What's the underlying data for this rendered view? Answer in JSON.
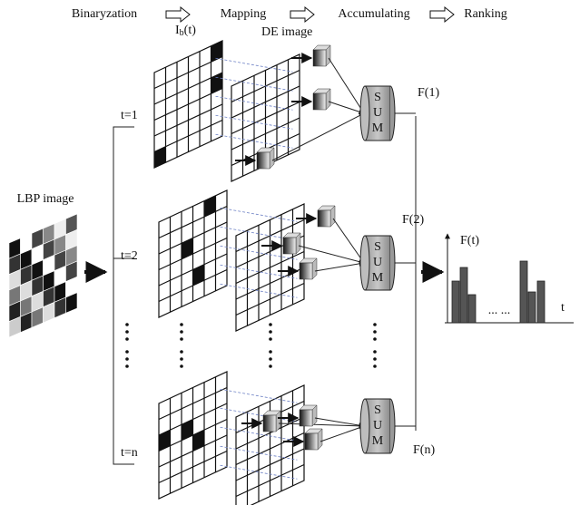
{
  "header": {
    "steps": [
      "Binaryzation",
      "Mapping",
      "Accumulating",
      "Ranking"
    ]
  },
  "labels": {
    "binary_image": {
      "base": "I",
      "subscript": "b",
      "suffix": "(t)"
    },
    "de_image": "DE image",
    "lbp_image": "LBP image"
  },
  "rows": [
    {
      "label": "t=1",
      "sum": [
        "S",
        "U",
        "M"
      ],
      "output": "F(1)"
    },
    {
      "label": "t=2",
      "sum": [
        "S",
        "U",
        "M"
      ],
      "output": "F(2)"
    },
    {
      "label": "t=n",
      "sum": [
        "S",
        "U",
        "M"
      ],
      "output": "F(n)"
    }
  ],
  "histogram": {
    "y_label": "F(t)",
    "x_label": "t",
    "ellipsis": "... ..."
  }
}
